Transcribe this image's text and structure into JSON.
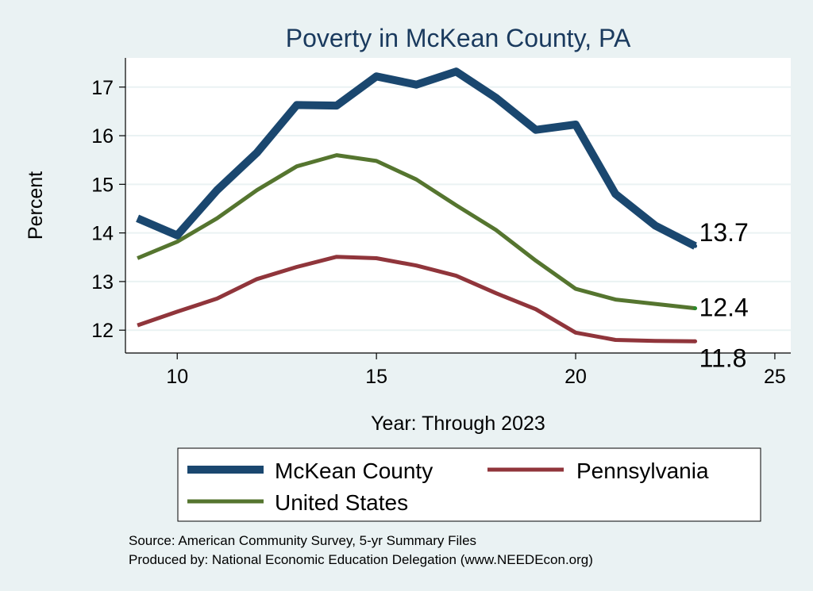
{
  "chart_data": {
    "type": "line",
    "title": "Poverty in McKean County, PA",
    "xlabel": "Year: Through 2023",
    "ylabel": "Percent",
    "xlim": [
      8.7,
      25.4
    ],
    "ylim": [
      11.53,
      17.6
    ],
    "xticks": [
      10,
      15,
      20,
      25
    ],
    "yticks": [
      12,
      13,
      14,
      15,
      16,
      17
    ],
    "grid": true,
    "legend_position": "bottom",
    "x": [
      9,
      10,
      11,
      12,
      13,
      14,
      15,
      16,
      17,
      18,
      19,
      20,
      21,
      22,
      23
    ],
    "series": [
      {
        "name": "McKean County",
        "color": "#1a476f",
        "values": [
          14.3,
          13.95,
          14.88,
          15.65,
          16.63,
          16.62,
          17.22,
          17.05,
          17.32,
          16.78,
          16.12,
          16.23,
          14.8,
          14.15,
          13.73
        ],
        "end_label": "13.7"
      },
      {
        "name": "Pennsylvania",
        "color": "#90353b",
        "values": [
          12.1,
          12.38,
          12.65,
          13.05,
          13.3,
          13.51,
          13.48,
          13.33,
          13.12,
          12.76,
          12.43,
          11.95,
          11.8,
          11.78,
          11.77
        ],
        "end_label": "11.8"
      },
      {
        "name": "United States",
        "color": "#55752f",
        "values": [
          13.48,
          13.82,
          14.3,
          14.88,
          15.37,
          15.6,
          15.48,
          15.1,
          14.57,
          14.06,
          13.43,
          12.85,
          12.63,
          12.54,
          12.45
        ],
        "end_label": "12.4"
      }
    ],
    "notes": [
      "Source: American Community Survey, 5-yr Summary Files",
      "Produced by: National Economic Education Delegation (www.NEEDEcon.org)"
    ]
  }
}
